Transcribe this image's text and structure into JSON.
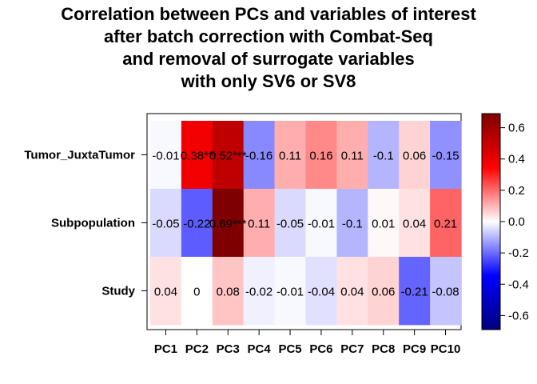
{
  "chart_data": {
    "type": "heatmap",
    "title_lines": [
      "Correlation between PCs and variables of interest",
      "after batch correction with Combat-Seq",
      "and removal of surrogate variables",
      "with only SV6 or SV8"
    ],
    "rows": [
      "Tumor_JuxtaTumor",
      "Subpopulation",
      "Study"
    ],
    "columns": [
      "PC1",
      "PC2",
      "PC3",
      "PC4",
      "PC5",
      "PC6",
      "PC7",
      "PC8",
      "PC9",
      "PC10"
    ],
    "values": [
      [
        -0.01,
        0.38,
        0.52,
        -0.16,
        0.11,
        0.16,
        0.11,
        -0.1,
        0.06,
        -0.15
      ],
      [
        -0.05,
        -0.22,
        0.69,
        0.11,
        -0.05,
        -0.01,
        -0.1,
        0.01,
        0.04,
        0.21
      ],
      [
        0.04,
        0,
        0.08,
        -0.02,
        -0.01,
        -0.04,
        0.04,
        0.06,
        -0.21,
        -0.08
      ]
    ],
    "labels": [
      [
        "-0.01",
        "0.38**",
        "0.52***",
        "-0.16",
        "0.11",
        "0.16",
        "0.11",
        "-0.1",
        "0.06",
        "-0.15"
      ],
      [
        "-0.05",
        "-0.22",
        "0.69***",
        "0.11",
        "-0.05",
        "-0.01",
        "-0.1",
        "0.01",
        "0.04",
        "0.21"
      ],
      [
        "0.04",
        "0",
        "0.08",
        "-0.02",
        "-0.01",
        "-0.04",
        "0.04",
        "0.06",
        "-0.21",
        "-0.08"
      ]
    ],
    "colorbar": {
      "ticks": [
        "0.6",
        "0.4",
        "0.2",
        "0.0",
        "-0.2",
        "-0.4",
        "-0.6"
      ],
      "tick_values": [
        0.6,
        0.4,
        0.2,
        0.0,
        -0.2,
        -0.4,
        -0.6
      ],
      "range": [
        -0.69,
        0.69
      ],
      "colors": {
        "low": "#00007f",
        "mid_low": "#0000ff",
        "mid": "#ffffff",
        "mid_high": "#ff0000",
        "high": "#7f0000"
      }
    }
  }
}
